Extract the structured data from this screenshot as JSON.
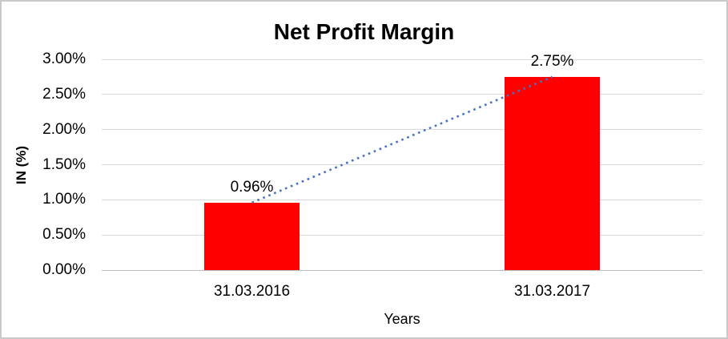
{
  "chart_data": {
    "type": "bar",
    "title": "Net Profit Margin",
    "categories": [
      "31.03.2016",
      "31.03.2017"
    ],
    "values": [
      0.96,
      2.75
    ],
    "data_labels": [
      "0.96%",
      "2.75%"
    ],
    "xlabel": "Years",
    "ylabel": "IN (%)",
    "ylim": [
      0,
      3
    ],
    "ytick_step": 0.5,
    "ytick_labels": [
      "0.00%",
      "0.50%",
      "1.00%",
      "1.50%",
      "2.00%",
      "2.50%",
      "3.00%"
    ],
    "grid": true,
    "legend": "none",
    "bar_color": "#ff0000",
    "gridline_color": "#d9d9d9",
    "axis_line_color": "#bfbfbf",
    "trendline": {
      "type": "linear",
      "style": "dotted",
      "color": "#4472c4"
    }
  }
}
